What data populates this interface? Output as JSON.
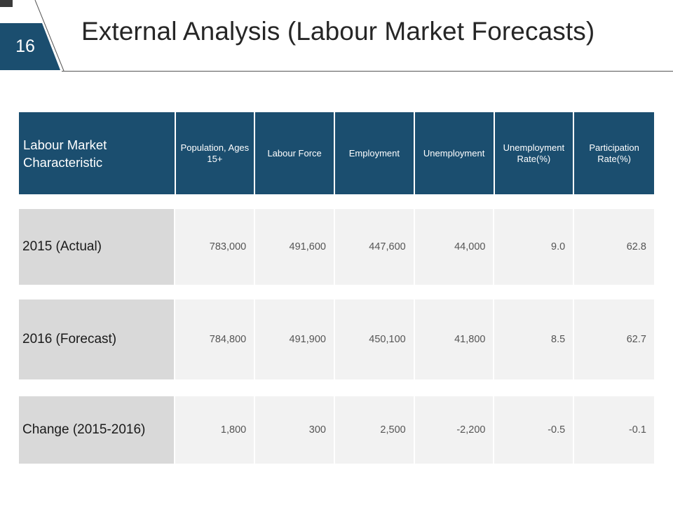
{
  "slide": {
    "number": "16",
    "title": "External Analysis (Labour Market Forecasts)",
    "accent_color": "#1b4e6f"
  },
  "table": {
    "header": {
      "label": "Labour Market Characteristic",
      "columns": [
        "Population, Ages 15+",
        "Labour Force",
        "Employment",
        "Unemployment",
        "Unemployment Rate(%)",
        "Participation Rate(%)"
      ]
    },
    "rows": [
      {
        "label": "2015 (Actual)",
        "values": [
          "783,000",
          "491,600",
          "447,600",
          "44,000",
          "9.0",
          "62.8"
        ]
      },
      {
        "label": "2016 (Forecast)",
        "values": [
          "784,800",
          "491,900",
          "450,100",
          "41,800",
          "8.5",
          "62.7"
        ]
      },
      {
        "label": "Change (2015-2016)",
        "values": [
          "1,800",
          "300",
          "2,500",
          "-2,200",
          "-0.5",
          "-0.1"
        ]
      }
    ]
  }
}
